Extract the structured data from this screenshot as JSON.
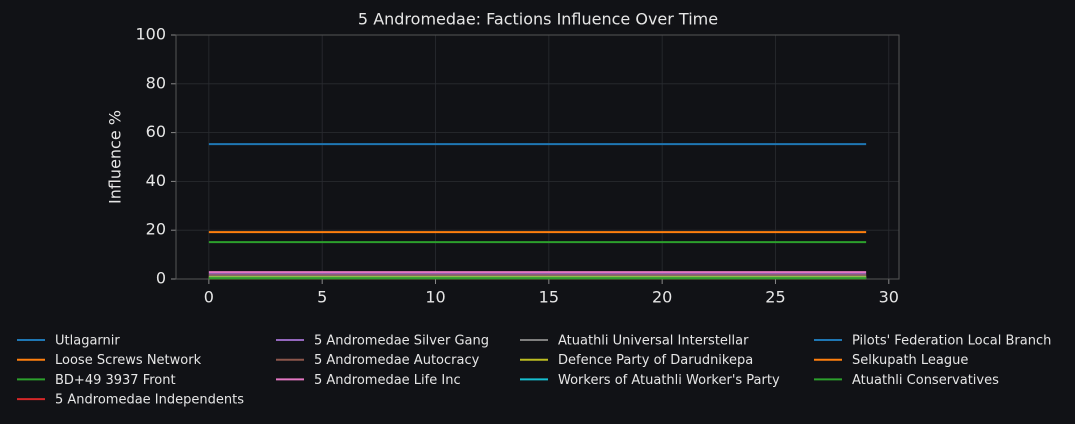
{
  "chart_data": {
    "type": "line",
    "title": "5 Andromedae: Factions Influence Over Time",
    "y_label": "Influence %",
    "x": [
      0,
      1,
      2,
      3,
      4,
      5,
      6,
      7,
      8,
      9,
      10,
      11,
      12,
      13,
      14,
      15,
      16,
      17,
      18,
      19,
      20,
      21,
      22,
      23,
      24,
      25,
      26,
      27,
      28,
      29
    ],
    "xlim": [
      -1.45,
      30.45
    ],
    "xticks": [
      0,
      5,
      10,
      15,
      20,
      25,
      30
    ],
    "ylim": [
      0,
      100
    ],
    "yticks": [
      0,
      20,
      40,
      60,
      80,
      100
    ],
    "grid": true,
    "legend": "below",
    "series": [
      {
        "name": "Utlagarnir",
        "color": "#1f77b4",
        "values": [
          55.3,
          55.3,
          55.3,
          55.3,
          55.3,
          55.3,
          55.3,
          55.3,
          55.3,
          55.3,
          55.3,
          55.3,
          55.3,
          55.3,
          55.3,
          55.3,
          55.3,
          55.3,
          55.3,
          55.3,
          55.3,
          55.3,
          55.3,
          55.3,
          55.3,
          55.3,
          55.3,
          55.3,
          55.3,
          55.3
        ]
      },
      {
        "name": "Loose Screws Network",
        "color": "#ff7f0e",
        "values": [
          19.2,
          19.2,
          19.2,
          19.2,
          19.2,
          19.2,
          19.2,
          19.2,
          19.2,
          19.2,
          19.2,
          19.2,
          19.2,
          19.2,
          19.2,
          19.2,
          19.2,
          19.2,
          19.2,
          19.2,
          19.2,
          19.2,
          19.2,
          19.2,
          19.2,
          19.2,
          19.2,
          19.2,
          19.2,
          19.2
        ]
      },
      {
        "name": "BD+49 3937 Front",
        "color": "#2ca02c",
        "values": [
          15.1,
          15.1,
          15.1,
          15.1,
          15.1,
          15.1,
          15.1,
          15.1,
          15.1,
          15.1,
          15.1,
          15.1,
          15.1,
          15.1,
          15.1,
          15.1,
          15.1,
          15.1,
          15.1,
          15.1,
          15.1,
          15.1,
          15.1,
          15.1,
          15.1,
          15.1,
          15.1,
          15.1,
          15.1,
          15.1
        ]
      },
      {
        "name": "5 Andromedae Independents",
        "color": "#d62728",
        "values": [
          1.2,
          1.2,
          1.2,
          1.2,
          1.2,
          1.2,
          1.2,
          1.2,
          1.2,
          1.2,
          1.2,
          1.2,
          1.2,
          1.2,
          1.2,
          1.2,
          1.2,
          1.2,
          1.2,
          1.2,
          1.2,
          1.2,
          1.2,
          1.2,
          1.2,
          1.2,
          1.2,
          1.2,
          1.2,
          1.2
        ]
      },
      {
        "name": "5 Andromedae Silver Gang",
        "color": "#9467bd",
        "values": [
          2.0,
          2.0,
          2.0,
          2.0,
          2.0,
          2.0,
          2.0,
          2.0,
          2.0,
          2.0,
          2.0,
          2.0,
          2.0,
          2.0,
          2.0,
          2.0,
          2.0,
          2.0,
          2.0,
          2.0,
          2.0,
          2.0,
          2.0,
          2.0,
          2.0,
          2.0,
          2.0,
          2.0,
          2.0,
          2.0
        ]
      },
      {
        "name": "5 Andromedae Autocracy",
        "color": "#8c564b",
        "values": [
          1.5,
          1.5,
          1.5,
          1.5,
          1.5,
          1.5,
          1.5,
          1.5,
          1.5,
          1.5,
          1.5,
          1.5,
          1.5,
          1.5,
          1.5,
          1.5,
          1.5,
          1.5,
          1.5,
          1.5,
          1.5,
          1.5,
          1.5,
          1.5,
          1.5,
          1.5,
          1.5,
          1.5,
          1.5,
          1.5
        ]
      },
      {
        "name": "5 Andromedae Life Inc",
        "color": "#e377c2",
        "values": [
          2.8,
          2.8,
          2.8,
          2.8,
          2.8,
          2.8,
          2.8,
          2.8,
          2.8,
          2.8,
          2.8,
          2.8,
          2.8,
          2.8,
          2.8,
          2.8,
          2.8,
          2.8,
          2.8,
          2.8,
          2.8,
          2.8,
          2.8,
          2.8,
          2.8,
          2.8,
          2.8,
          2.8,
          2.8,
          2.8
        ]
      },
      {
        "name": "Atuathli Universal Interstellar",
        "color": "#7f7f7f",
        "values": [
          1.0,
          1.0,
          1.0,
          1.0,
          1.0,
          1.0,
          1.0,
          1.0,
          1.0,
          1.0,
          1.0,
          1.0,
          1.0,
          1.0,
          1.0,
          1.0,
          1.0,
          1.0,
          1.0,
          1.0,
          1.0,
          1.0,
          1.0,
          1.0,
          1.0,
          1.0,
          1.0,
          1.0,
          1.0,
          1.0
        ]
      },
      {
        "name": "Defence Party of Darudnikepa",
        "color": "#bcbd22",
        "values": [
          0.8,
          0.8,
          0.8,
          0.8,
          0.8,
          0.8,
          0.8,
          0.8,
          0.8,
          0.8,
          0.8,
          0.8,
          0.8,
          0.8,
          0.8,
          0.8,
          0.8,
          0.8,
          0.8,
          0.8,
          0.8,
          0.8,
          0.8,
          0.8,
          0.8,
          0.8,
          0.8,
          0.8,
          0.8,
          0.8
        ]
      },
      {
        "name": "Workers of Atuathli Worker's Party",
        "color": "#17becf",
        "values": [
          0.5,
          0.5,
          0.5,
          0.5,
          0.5,
          0.5,
          0.5,
          0.5,
          0.5,
          0.5,
          0.5,
          0.5,
          0.5,
          0.5,
          0.5,
          0.5,
          0.5,
          0.5,
          0.5,
          0.5,
          0.5,
          0.5,
          0.5,
          0.5,
          0.5,
          0.5,
          0.5,
          0.5,
          0.5,
          0.5
        ]
      },
      {
        "name": "Pilots' Federation Local Branch",
        "color": "#1f77b4",
        "values": [
          0.3,
          0.3,
          0.3,
          0.3,
          0.3,
          0.3,
          0.3,
          0.3,
          0.3,
          0.3,
          0.3,
          0.3,
          0.3,
          0.3,
          0.3,
          0.3,
          0.3,
          0.3,
          0.3,
          0.3,
          0.3,
          0.3,
          0.3,
          0.3,
          0.3,
          0.3,
          0.3,
          0.3,
          0.3,
          0.3
        ]
      },
      {
        "name": "Selkupath League",
        "color": "#ff7f0e",
        "values": [
          0.3,
          0.3,
          0.3,
          0.3,
          0.3,
          0.3,
          0.3,
          0.3,
          0.3,
          0.3,
          0.3,
          0.3,
          0.3,
          0.3,
          0.3,
          0.3,
          0.3,
          0.3,
          0.3,
          0.3,
          0.3,
          0.3,
          0.3,
          0.3,
          0.3,
          0.3,
          0.3,
          0.3,
          0.3,
          0.3
        ]
      },
      {
        "name": "Atuathli Conservatives",
        "color": "#2ca02c",
        "values": [
          0.3,
          0.3,
          0.3,
          0.3,
          0.3,
          0.3,
          0.3,
          0.3,
          0.3,
          0.3,
          0.3,
          0.3,
          0.3,
          0.3,
          0.3,
          0.3,
          0.3,
          0.3,
          0.3,
          0.3,
          0.3,
          0.3,
          0.3,
          0.3,
          0.3,
          0.3,
          0.3,
          0.3,
          0.3,
          0.3
        ]
      }
    ]
  }
}
